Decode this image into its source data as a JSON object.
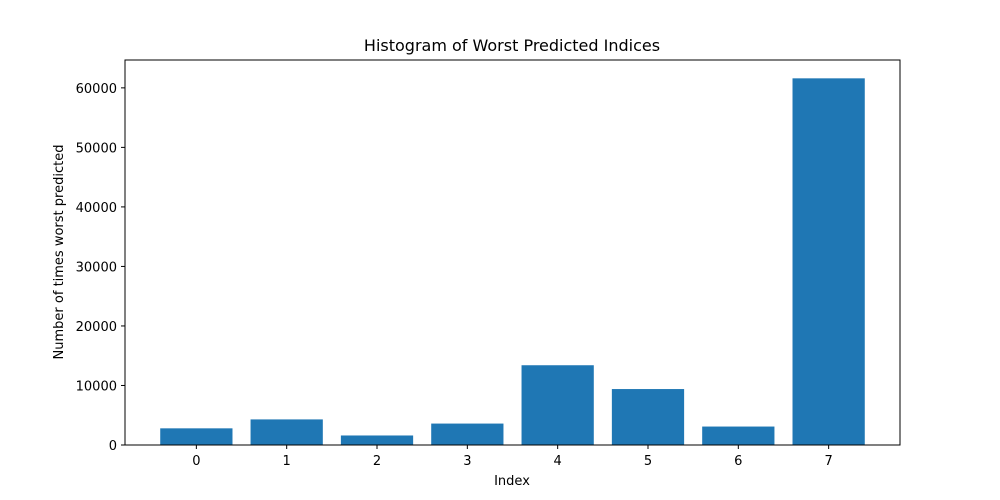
{
  "chart_data": {
    "type": "bar",
    "title": "Histogram of Worst Predicted Indices",
    "xlabel": "Index",
    "ylabel": "Number of times worst predicted",
    "categories": [
      "0",
      "1",
      "2",
      "3",
      "4",
      "5",
      "6",
      "7"
    ],
    "values": [
      2800,
      4300,
      1600,
      3600,
      13400,
      9400,
      3100,
      61600
    ],
    "ylim": [
      0,
      64680
    ],
    "yticks": [
      0,
      10000,
      20000,
      30000,
      40000,
      50000,
      60000
    ],
    "ytick_labels": [
      "0",
      "10000",
      "20000",
      "30000",
      "40000",
      "50000",
      "60000"
    ],
    "grid": false,
    "bar_color": "#1f77b4"
  }
}
